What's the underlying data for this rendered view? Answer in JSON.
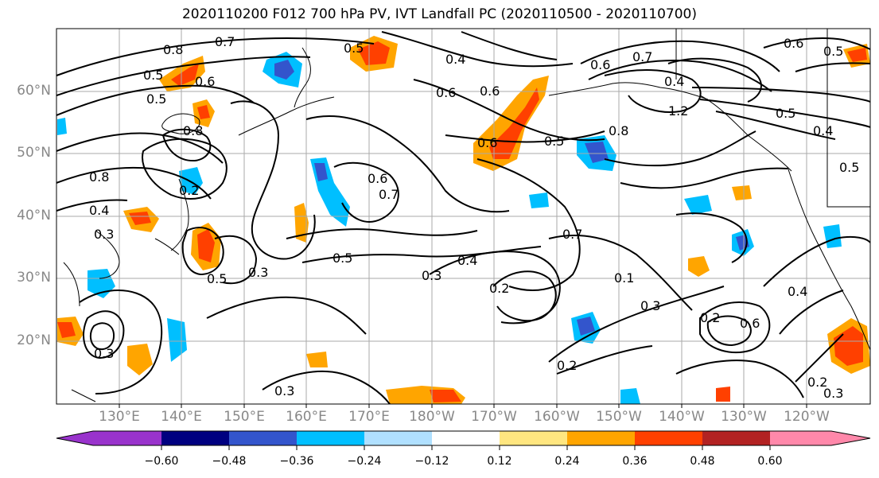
{
  "title": "2020110200 F012 700 hPa PV, IVT Landfall PC (2020110500 - 2020110700)",
  "lat_ticks": [
    "60°N",
    "50°N",
    "40°N",
    "30°N",
    "20°N"
  ],
  "lon_ticks": [
    "130°E",
    "140°E",
    "150°E",
    "160°E",
    "170°E",
    "180°W",
    "170°W",
    "160°W",
    "150°W",
    "140°W",
    "130°W",
    "120°W"
  ],
  "colorbar": {
    "colors": [
      "#9933cc",
      "#000080",
      "#3355cc",
      "#00bfff",
      "#b0e0ff",
      "#ffffff",
      "#ffe680",
      "#ffa500",
      "#ff4000",
      "#b22222",
      "#ff88aa"
    ],
    "tick_labels": [
      "−0.60",
      "−0.48",
      "−0.36",
      "−0.24",
      "−0.12",
      "0.12",
      "0.24",
      "0.36",
      "0.48",
      "0.60"
    ]
  },
  "contour_labels": [
    "0.7",
    "0.5",
    "0.4",
    "0.6",
    "0.7",
    "0.6",
    "0.5",
    "0.8",
    "0.5",
    "0.6",
    "0.8",
    "0.5",
    "0.8",
    "0.6",
    "0.5",
    "0.8",
    "0.6",
    "0.4",
    "0.7",
    "0.6",
    "0.3",
    "0.5",
    "0.3",
    "0.5",
    "0.4",
    "0.3",
    "0.2",
    "0.7",
    "0.1",
    "0.3",
    "0.2",
    "0.2",
    "0.6",
    "0.2",
    "0.3",
    "0.4",
    "0.3",
    "0.2",
    "0.3",
    "0.6",
    "1.2",
    "0.4",
    "0.5",
    "0.4",
    "0.5"
  ]
}
